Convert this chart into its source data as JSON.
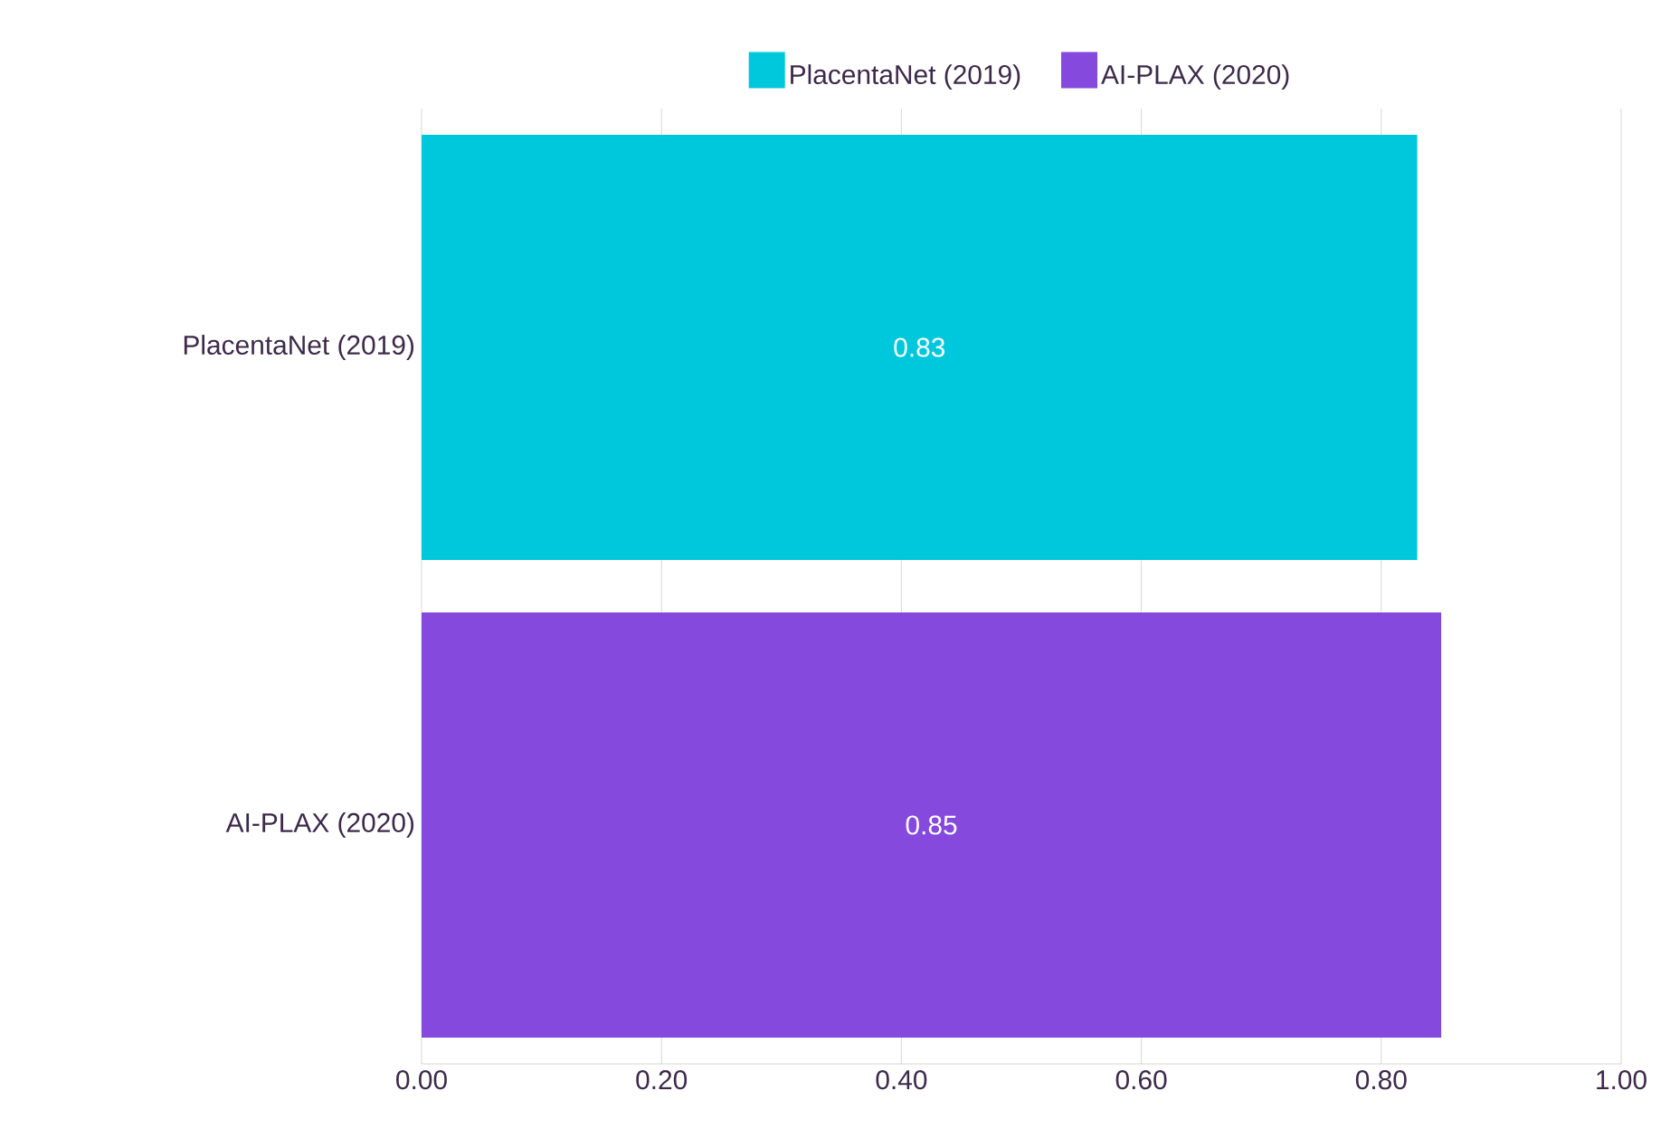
{
  "chart_data": {
    "type": "bar",
    "orientation": "horizontal",
    "categories": [
      "PlacentaNet (2019)",
      "AI-PLAX (2020)"
    ],
    "series": [
      {
        "name": "PlacentaNet (2019)",
        "color": "#00c8dc",
        "values": [
          0.83,
          null
        ]
      },
      {
        "name": "AI-PLAX (2020)",
        "color": "#8549dd",
        "values": [
          null,
          0.85
        ]
      }
    ],
    "xlim": [
      0,
      1
    ],
    "xticks": [
      {
        "value": 0,
        "label": "0.00"
      },
      {
        "value": 0.2,
        "label": "0.20"
      },
      {
        "value": 0.4,
        "label": "0.40"
      },
      {
        "value": 0.6,
        "label": "0.60"
      },
      {
        "value": 0.8,
        "label": "0.80"
      },
      {
        "value": 1,
        "label": "1.00"
      }
    ],
    "grid": "x",
    "legend": "top",
    "data_labels": true
  }
}
